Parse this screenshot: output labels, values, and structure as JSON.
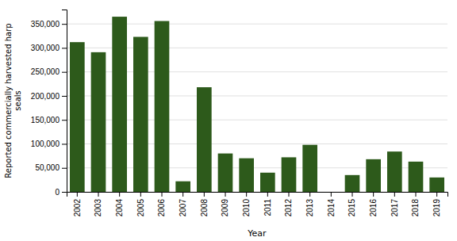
{
  "chart_data": {
    "type": "bar",
    "categories": [
      "2002",
      "2003",
      "2004",
      "2005",
      "2006",
      "2007",
      "2008",
      "2009",
      "2010",
      "2011",
      "2012",
      "2013",
      "2014",
      "2015",
      "2016",
      "2017",
      "2018",
      "2019"
    ],
    "values": [
      312000,
      291000,
      365000,
      323000,
      356000,
      22000,
      218000,
      80000,
      70000,
      40000,
      72000,
      98000,
      0,
      35000,
      68000,
      84000,
      63000,
      30000
    ],
    "color": "#2d5a1b",
    "xlabel": "Year",
    "ylabel": "Reported commercially harvested harp\nseals",
    "ylim": [
      0,
      380000
    ],
    "yticks": [
      0,
      {
        "value": 50000,
        "label": "50,000"
      },
      {
        "value": 100000,
        "label": "100,000"
      },
      {
        "value": 150000,
        "label": "150,000"
      },
      {
        "value": 200000,
        "label": "200,000"
      },
      {
        "value": 250000,
        "label": "250,000"
      },
      {
        "value": 300000,
        "label": "300,000"
      },
      {
        "value": 350000,
        "label": "350,000"
      }
    ],
    "grid": true
  }
}
